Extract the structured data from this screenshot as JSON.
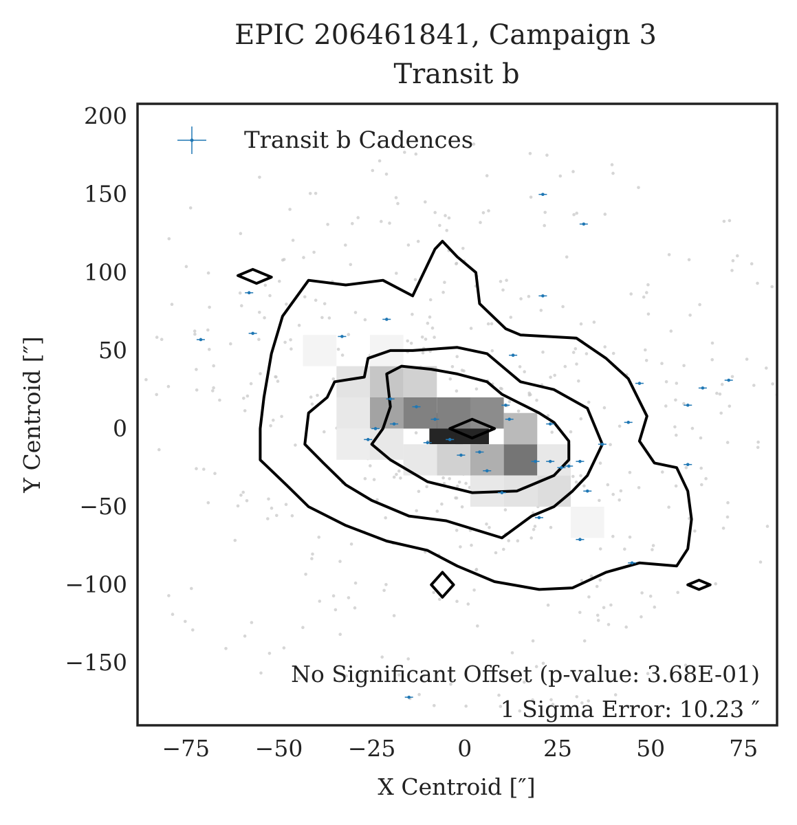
{
  "chart_data": {
    "type": "scatter",
    "title": "EPIC 206461841, Campaign 3",
    "subtitle": "Transit b",
    "xlabel": "X Centroid [″]",
    "ylabel": "Y Centroid [″]",
    "xlim": [
      -88,
      84
    ],
    "ylim": [
      -190,
      208
    ],
    "xticks": [
      -75,
      -50,
      -25,
      0,
      25,
      50,
      75
    ],
    "yticks": [
      -150,
      -100,
      -50,
      0,
      50,
      100,
      150,
      200
    ],
    "xtick_labels": [
      "−75",
      "−50",
      "−25",
      "0",
      "25",
      "50",
      "75"
    ],
    "ytick_labels": [
      "−150",
      "−100",
      "−50",
      "0",
      "50",
      "100",
      "150",
      "200"
    ],
    "grid": false,
    "legend": {
      "position": "top-left",
      "entries": [
        "Transit b Cadences"
      ]
    },
    "annotations": [
      "No Significant Offset (p-value: 3.68E-01)",
      "1 Sigma Error: 10.23 ″"
    ],
    "colors": {
      "cadence": "#1f77b4",
      "background_points": "#c8c8c8",
      "contour": "#000000"
    },
    "series": [
      {
        "name": "Transit b Cadences",
        "points": [
          [
            21,
            150
          ],
          [
            32,
            131
          ],
          [
            -58,
            87
          ],
          [
            21,
            85
          ],
          [
            -21,
            70
          ],
          [
            -33,
            59
          ],
          [
            -71,
            57
          ],
          [
            -57,
            61
          ],
          [
            13,
            47
          ],
          [
            47,
            29
          ],
          [
            71,
            31
          ],
          [
            64,
            26
          ],
          [
            60,
            15
          ],
          [
            -20,
            19
          ],
          [
            -13,
            14
          ],
          [
            11,
            15
          ],
          [
            -8,
            6
          ],
          [
            12,
            6
          ],
          [
            -19,
            3
          ],
          [
            23,
            3
          ],
          [
            44,
            4
          ],
          [
            -24,
            0
          ],
          [
            -10,
            -9
          ],
          [
            -4,
            -7
          ],
          [
            -26,
            -7
          ],
          [
            37,
            -10
          ],
          [
            -1,
            -17
          ],
          [
            4,
            -15
          ],
          [
            19,
            -21
          ],
          [
            23,
            -21
          ],
          [
            26,
            -25
          ],
          [
            28,
            -24
          ],
          [
            31,
            -21
          ],
          [
            6,
            -27
          ],
          [
            60,
            -23
          ],
          [
            10,
            -41
          ],
          [
            33,
            -40
          ],
          [
            20,
            -57
          ],
          [
            31,
            -71
          ],
          [
            45,
            -86
          ],
          [
            -15,
            -172
          ]
        ]
      }
    ],
    "background_scatter_note": "",
    "density_bins": [
      {
        "x": -5,
        "y": 0,
        "level": 0.95
      },
      {
        "x": 2,
        "y": 0,
        "level": 0.95
      },
      {
        "x": -12,
        "y": 10,
        "level": 0.55
      },
      {
        "x": -3,
        "y": 10,
        "level": 0.55
      },
      {
        "x": 6,
        "y": 10,
        "level": 0.5
      },
      {
        "x": -21,
        "y": 10,
        "level": 0.4
      },
      {
        "x": -21,
        "y": 30,
        "level": 0.25
      },
      {
        "x": -12,
        "y": 30,
        "level": 0.2
      },
      {
        "x": 15,
        "y": -20,
        "level": 0.6
      },
      {
        "x": 6,
        "y": -20,
        "level": 0.35
      },
      {
        "x": 15,
        "y": 0,
        "level": 0.3
      },
      {
        "x": -3,
        "y": -20,
        "level": 0.2
      },
      {
        "x": 24,
        "y": -40,
        "level": 0.15
      },
      {
        "x": 15,
        "y": -40,
        "level": 0.12
      },
      {
        "x": 6,
        "y": -40,
        "level": 0.1
      },
      {
        "x": -30,
        "y": 30,
        "level": 0.12
      },
      {
        "x": -30,
        "y": 10,
        "level": 0.1
      },
      {
        "x": -30,
        "y": -10,
        "level": 0.08
      },
      {
        "x": 24,
        "y": -20,
        "level": 0.1
      },
      {
        "x": -12,
        "y": -20,
        "level": 0.1
      },
      {
        "x": -21,
        "y": -10,
        "level": 0.1
      },
      {
        "x": 33,
        "y": -60,
        "level": 0.05
      },
      {
        "x": -39,
        "y": 50,
        "level": 0.05
      },
      {
        "x": -21,
        "y": 50,
        "level": 0.05
      }
    ],
    "contours": [
      [
        [
          -55,
          0
        ],
        [
          -54,
          20
        ],
        [
          -52,
          48
        ],
        [
          -49,
          72
        ],
        [
          -42,
          95
        ],
        [
          -32,
          92
        ],
        [
          -22,
          95
        ],
        [
          -14,
          85
        ],
        [
          -8,
          115
        ],
        [
          -6,
          120
        ],
        [
          -2,
          110
        ],
        [
          3,
          100
        ],
        [
          4,
          80
        ],
        [
          11,
          64
        ],
        [
          15,
          60
        ],
        [
          30,
          58
        ],
        [
          38,
          45
        ],
        [
          44,
          32
        ],
        [
          49,
          8
        ],
        [
          47,
          -8
        ],
        [
          51,
          -22
        ],
        [
          57,
          -25
        ],
        [
          60,
          -40
        ],
        [
          61,
          -58
        ],
        [
          60,
          -77
        ],
        [
          57,
          -88
        ],
        [
          47,
          -86
        ],
        [
          38,
          -92
        ],
        [
          29,
          -102
        ],
        [
          20,
          -103
        ],
        [
          8,
          -98
        ],
        [
          -2,
          -88
        ],
        [
          -10,
          -78
        ],
        [
          -21,
          -72
        ],
        [
          -32,
          -62
        ],
        [
          -42,
          -50
        ],
        [
          -48,
          -36
        ],
        [
          -55,
          -20
        ],
        [
          -55,
          0
        ]
      ],
      [
        [
          -27,
          33
        ],
        [
          -26,
          45
        ],
        [
          -20,
          50
        ],
        [
          -14,
          50
        ],
        [
          -2,
          52
        ],
        [
          6,
          48
        ],
        [
          10,
          40
        ],
        [
          15,
          30
        ],
        [
          24,
          25
        ],
        [
          33,
          13
        ],
        [
          37,
          -10
        ],
        [
          33,
          -30
        ],
        [
          29,
          -40
        ],
        [
          24,
          -50
        ],
        [
          18,
          -56
        ],
        [
          10,
          -70
        ],
        [
          -5,
          -59
        ],
        [
          -15,
          -56
        ],
        [
          -25,
          -46
        ],
        [
          -32,
          -36
        ],
        [
          -38,
          -22
        ],
        [
          -43,
          -10
        ],
        [
          -42,
          10
        ],
        [
          -37,
          20
        ],
        [
          -35,
          30
        ],
        [
          -27,
          33
        ]
      ],
      [
        [
          -21,
          35
        ],
        [
          -17,
          40
        ],
        [
          -9,
          38
        ],
        [
          -2,
          35
        ],
        [
          6,
          30
        ],
        [
          10,
          22
        ],
        [
          15,
          16
        ],
        [
          20,
          10
        ],
        [
          24,
          4
        ],
        [
          28,
          -8
        ],
        [
          28,
          -20
        ],
        [
          24,
          -30
        ],
        [
          14,
          -40
        ],
        [
          2,
          -41
        ],
        [
          -10,
          -34
        ],
        [
          -20,
          -20
        ],
        [
          -25,
          -10
        ],
        [
          -22,
          0
        ],
        [
          -20,
          14
        ],
        [
          -21,
          35
        ]
      ],
      [
        [
          -4,
          0
        ],
        [
          2,
          6
        ],
        [
          8,
          0
        ],
        [
          2,
          -6
        ],
        [
          -4,
          0
        ]
      ],
      [
        [
          -61,
          98
        ],
        [
          -57,
          102
        ],
        [
          -52,
          97
        ],
        [
          -56,
          93
        ],
        [
          -61,
          98
        ]
      ],
      [
        [
          -9,
          -100
        ],
        [
          -6,
          -92
        ],
        [
          -3,
          -100
        ],
        [
          -6,
          -108
        ],
        [
          -9,
          -100
        ]
      ],
      [
        [
          60,
          -100
        ],
        [
          63,
          -97
        ],
        [
          66,
          -100
        ],
        [
          63,
          -103
        ],
        [
          60,
          -100
        ]
      ]
    ]
  }
}
